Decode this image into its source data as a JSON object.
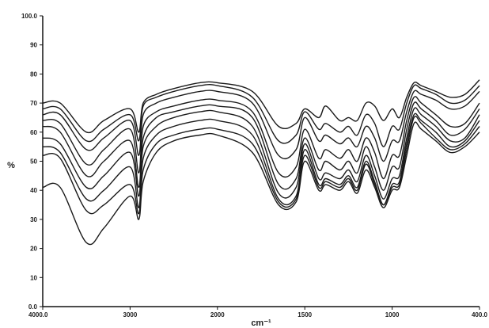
{
  "chart_data": {
    "type": "line",
    "title": "",
    "xlabel": "cm⁻¹",
    "ylabel": "%",
    "xlim": [
      4000,
      400
    ],
    "ylim": [
      0,
      100
    ],
    "grid": false,
    "legend": "none",
    "x_ticks": [
      {
        "value": 4000,
        "label": "4000.0"
      },
      {
        "value": 3000,
        "label": "3000"
      },
      {
        "value": 2000,
        "label": "2000"
      },
      {
        "value": 1500,
        "label": "1500"
      },
      {
        "value": 1000,
        "label": "1000"
      },
      {
        "value": 400,
        "label": "400.0"
      }
    ],
    "y_ticks": [
      {
        "value": 0,
        "label": "0.0"
      },
      {
        "value": 10,
        "label": "10"
      },
      {
        "value": 20,
        "label": "20"
      },
      {
        "value": 30,
        "label": "30"
      },
      {
        "value": 40,
        "label": "40"
      },
      {
        "value": 50,
        "label": "50"
      },
      {
        "value": 60,
        "label": "60"
      },
      {
        "value": 70,
        "label": "70"
      },
      {
        "value": 80,
        "label": "80"
      },
      {
        "value": 90,
        "label": "90"
      },
      {
        "value": 100,
        "label": "100.0"
      }
    ],
    "x": [
      4000,
      3800,
      3500,
      3300,
      3000,
      2900,
      2850,
      2700,
      2500,
      2200,
      2000,
      1800,
      1650,
      1550,
      1500,
      1420,
      1380,
      1300,
      1250,
      1200,
      1150,
      1100,
      1050,
      1000,
      950,
      900,
      850,
      800,
      700,
      600,
      500,
      400
    ],
    "colors": {
      "line": "#1a1a1a",
      "axis": "#111111"
    },
    "series": [
      {
        "values": [
          70,
          70,
          60,
          64,
          68,
          60,
          70,
          73,
          75,
          77,
          77,
          74,
          62,
          63,
          68,
          65,
          69,
          64,
          65,
          64,
          70,
          69,
          64,
          68,
          65,
          72,
          77,
          76,
          74,
          72,
          73,
          78
        ]
      },
      {
        "values": [
          68,
          68,
          57,
          61,
          66,
          57,
          69,
          72,
          74,
          76,
          76,
          72,
          57,
          59,
          67,
          61,
          63,
          60,
          62,
          59,
          66,
          63,
          55,
          62,
          61,
          70,
          76,
          75,
          73,
          70,
          71,
          76
        ]
      },
      {
        "values": [
          66,
          66,
          54,
          58,
          64,
          52,
          66,
          70,
          72,
          74,
          74,
          70,
          52,
          54,
          65,
          57,
          59,
          56,
          58,
          55,
          62,
          58,
          50,
          57,
          57,
          67,
          74,
          73,
          71,
          68,
          69,
          74
        ]
      },
      {
        "values": [
          64,
          63,
          49,
          54,
          61,
          46,
          62,
          67,
          69,
          71,
          71,
          67,
          46,
          48,
          61,
          51,
          54,
          51,
          54,
          50,
          58,
          53,
          44,
          52,
          52,
          64,
          72,
          70,
          66,
          62,
          63,
          70
        ]
      },
      {
        "values": [
          62,
          60,
          45,
          50,
          57,
          41,
          58,
          65,
          67,
          69,
          69,
          65,
          42,
          44,
          58,
          47,
          50,
          47,
          50,
          46,
          55,
          48,
          40,
          48,
          48,
          61,
          70,
          68,
          64,
          59,
          61,
          68
        ]
      },
      {
        "values": [
          58,
          56,
          41,
          45,
          53,
          38,
          55,
          62,
          65,
          67,
          67,
          62,
          39,
          41,
          56,
          44,
          46,
          44,
          47,
          43,
          52,
          45,
          37,
          44,
          45,
          58,
          68,
          66,
          62,
          57,
          58,
          66
        ]
      },
      {
        "values": [
          55,
          53,
          37,
          40,
          48,
          34,
          51,
          59,
          62,
          64,
          64,
          59,
          37,
          38,
          54,
          42,
          44,
          42,
          45,
          41,
          50,
          43,
          35,
          42,
          43,
          56,
          66,
          64,
          60,
          55,
          57,
          64
        ]
      },
      {
        "values": [
          52,
          51,
          33,
          35,
          42,
          32,
          47,
          56,
          59,
          61,
          61,
          56,
          36,
          37,
          52,
          41,
          43,
          41,
          44,
          40,
          49,
          42,
          35,
          41,
          42,
          54,
          65,
          63,
          58,
          54,
          56,
          62
        ]
      },
      {
        "values": [
          41,
          41,
          22,
          27,
          38,
          30,
          43,
          53,
          57,
          59,
          59,
          53,
          35,
          36,
          50,
          40,
          42,
          40,
          43,
          39,
          47,
          41,
          34,
          40,
          41,
          52,
          63,
          61,
          57,
          53,
          55,
          60
        ]
      }
    ]
  }
}
